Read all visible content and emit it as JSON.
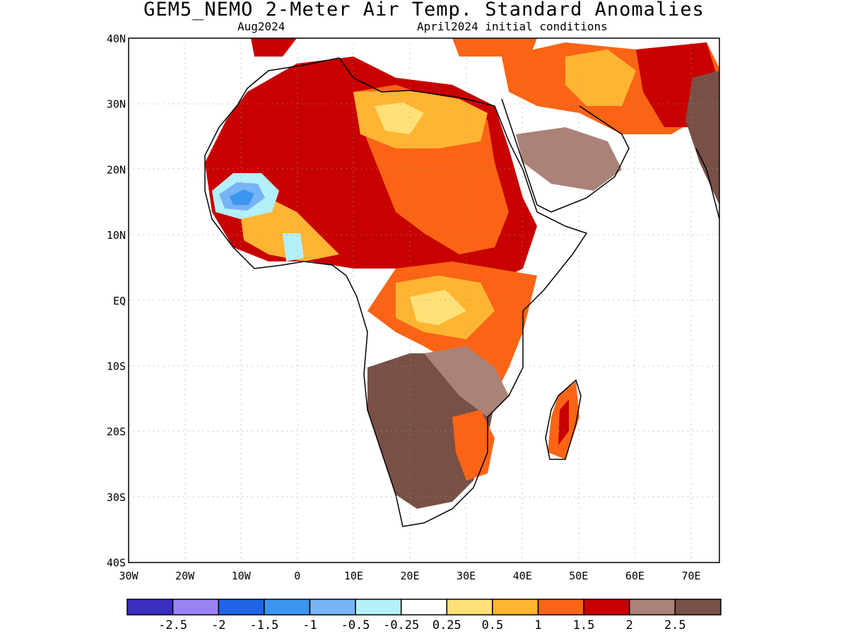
{
  "title": "GEM5_NEMO 2-Meter Air Temp. Standard Anomalies",
  "subtitle_left": "Aug2024",
  "subtitle_right": "April2024 initial conditions",
  "map": {
    "lat_labels": [
      "40N",
      "30N",
      "20N",
      "10N",
      "EQ",
      "10S",
      "20S",
      "30S",
      "40S"
    ],
    "lon_labels": [
      "30W",
      "20W",
      "10W",
      "0",
      "10E",
      "20E",
      "30E",
      "40E",
      "50E",
      "60E",
      "70E"
    ],
    "lon_range": [
      -30,
      75
    ],
    "lat_range": [
      -40,
      40
    ]
  },
  "legend": {
    "colors": [
      "#3b2dbd",
      "#9a82f5",
      "#1e64e6",
      "#3c96f0",
      "#78b4f5",
      "#b4f0fa",
      "#ffffff",
      "#ffe178",
      "#ffb432",
      "#fa6414",
      "#c80000",
      "#aa8278",
      "#785046"
    ],
    "labels": [
      "-2.5",
      "-2",
      "-1.5",
      "-1",
      "-0.5",
      "-0.25",
      "0.25",
      "0.5",
      "1",
      "1.5",
      "2",
      "2.5"
    ]
  }
}
